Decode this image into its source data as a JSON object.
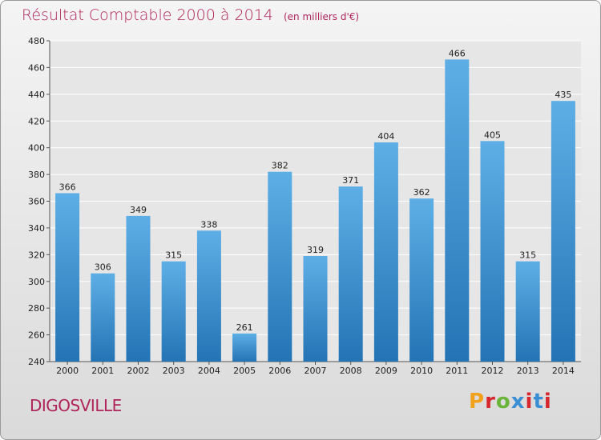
{
  "title": "Résultat Comptable 2000 à 2014",
  "subtitle": "(en milliers d'€)",
  "commune": "DIGOSVILLE",
  "brand": {
    "text": "Proxiti",
    "colors": [
      "#f2a11d",
      "#6ab43a",
      "#3a8fd4",
      "#d6272f"
    ]
  },
  "colors": {
    "bar_top": "#5eaee6",
    "bar_bottom": "#2474b5",
    "grid": "#ffffff",
    "title": "#b0245a",
    "axis_text": "#222222"
  },
  "chart_data": {
    "type": "bar",
    "title": "Résultat Comptable 2000 à 2014",
    "xlabel": "",
    "ylabel": "",
    "categories": [
      "2000",
      "2001",
      "2002",
      "2003",
      "2004",
      "2005",
      "2006",
      "2007",
      "2008",
      "2009",
      "2010",
      "2011",
      "2012",
      "2013",
      "2014"
    ],
    "values": [
      366,
      306,
      349,
      315,
      338,
      261,
      382,
      319,
      371,
      404,
      362,
      466,
      405,
      315,
      435
    ],
    "ylim": [
      240,
      480
    ],
    "yticks": [
      240,
      260,
      280,
      300,
      320,
      340,
      360,
      380,
      400,
      420,
      440,
      460,
      480
    ],
    "grid": true,
    "legend": "none",
    "data_labels": true
  }
}
